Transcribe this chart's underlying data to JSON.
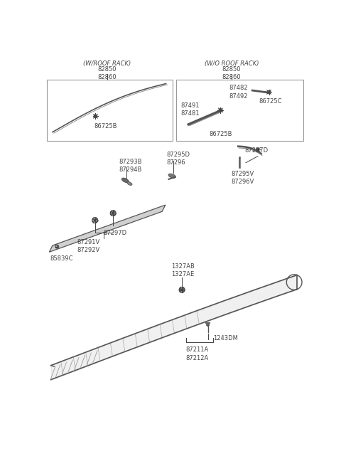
{
  "bg_color": "#ffffff",
  "line_color": "#444444",
  "border_color": "#999999",
  "fig_width": 4.8,
  "fig_height": 6.55,
  "dpi": 100,
  "labels": {
    "w_roof_rack": "(W/ROOF RACK)",
    "wo_roof_rack": "(W/O ROOF RACK)",
    "82850_82860_left": "82850\n82860",
    "82850_82860_right": "82850\n82860",
    "86725B_left": "86725B",
    "87491_87481": "87491\n87481",
    "86725B_right": "86725B",
    "87482_87492": "87482\n87492",
    "86725C": "86725C",
    "87293B_87294B": "87293B\n87294B",
    "87295D_87296": "87295D\n87296",
    "87297D_top": "87297D",
    "87295V_87296V": "87295V\n87296V",
    "85839C": "85839C",
    "87297D_bot": "87297D",
    "87291V_87292V": "87291V\n87292V",
    "1327AB_1327AE": "1327AB\n1327AE",
    "1243DM": "1243DM",
    "87211A_87212A": "87211A\n87212A"
  }
}
